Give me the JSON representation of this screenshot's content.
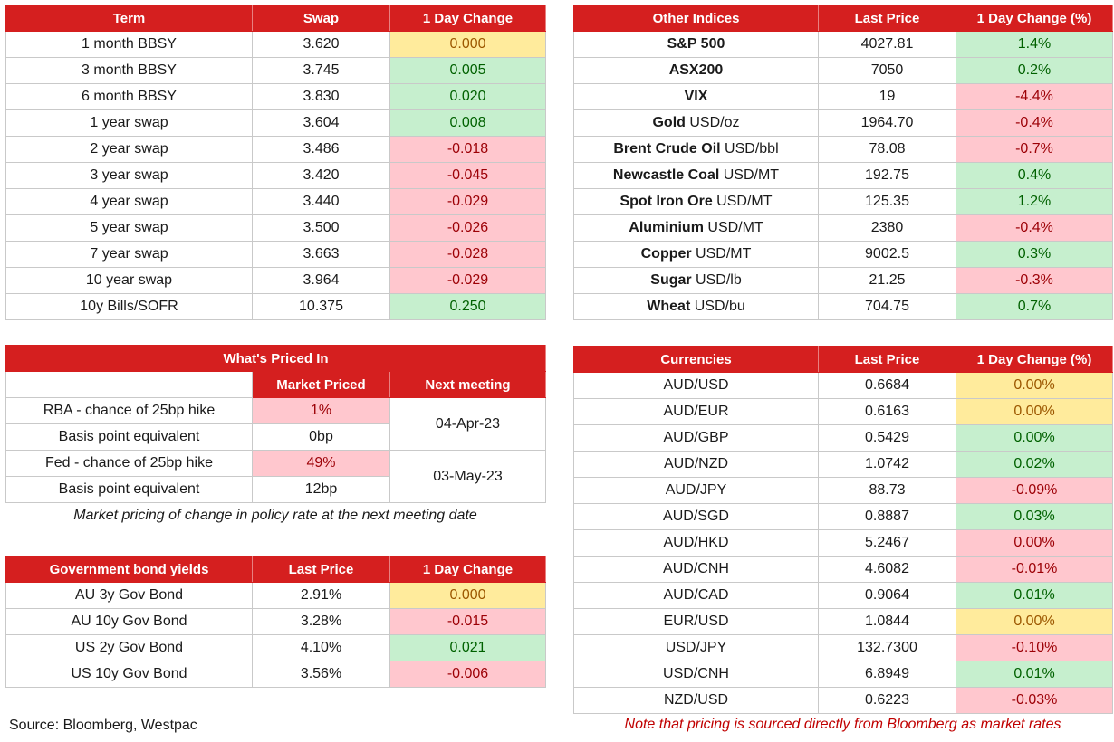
{
  "swaps": {
    "headers": [
      "Term",
      "Swap",
      "1 Day Change"
    ],
    "rows": [
      {
        "term": "1 month BBSY",
        "swap": "3.620",
        "change": "0.000",
        "status": "neu"
      },
      {
        "term": "3 month BBSY",
        "swap": "3.745",
        "change": "0.005",
        "status": "pos"
      },
      {
        "term": "6 month BBSY",
        "swap": "3.830",
        "change": "0.020",
        "status": "pos"
      },
      {
        "term": "1 year swap",
        "swap": "3.604",
        "change": "0.008",
        "status": "pos"
      },
      {
        "term": "2 year swap",
        "swap": "3.486",
        "change": "-0.018",
        "status": "neg"
      },
      {
        "term": "3 year swap",
        "swap": "3.420",
        "change": "-0.045",
        "status": "neg"
      },
      {
        "term": "4 year swap",
        "swap": "3.440",
        "change": "-0.029",
        "status": "neg"
      },
      {
        "term": "5 year swap",
        "swap": "3.500",
        "change": "-0.026",
        "status": "neg"
      },
      {
        "term": "7 year swap",
        "swap": "3.663",
        "change": "-0.028",
        "status": "neg"
      },
      {
        "term": "10 year swap",
        "swap": "3.964",
        "change": "-0.029",
        "status": "neg"
      },
      {
        "term": "10y Bills/SOFR",
        "swap": "10.375",
        "change": "0.250",
        "status": "pos"
      }
    ]
  },
  "indices": {
    "headers": [
      "Other Indices",
      "Last Price",
      "1 Day Change (%)"
    ],
    "rows": [
      {
        "name": "S&P 500",
        "unit": "",
        "price": "4027.81",
        "change": "1.4%",
        "status": "pos"
      },
      {
        "name": "ASX200",
        "unit": "",
        "price": "7050",
        "change": "0.2%",
        "status": "pos"
      },
      {
        "name": "VIX",
        "unit": "",
        "price": "19",
        "change": "-4.4%",
        "status": "neg"
      },
      {
        "name": "Gold",
        "unit": " USD/oz",
        "price": "1964.70",
        "change": "-0.4%",
        "status": "neg"
      },
      {
        "name": "Brent Crude Oil",
        "unit": " USD/bbl",
        "price": "78.08",
        "change": "-0.7%",
        "status": "neg"
      },
      {
        "name": "Newcastle Coal",
        "unit": " USD/MT",
        "price": "192.75",
        "change": "0.4%",
        "status": "pos"
      },
      {
        "name": "Spot Iron Ore",
        "unit": " USD/MT",
        "price": "125.35",
        "change": "1.2%",
        "status": "pos"
      },
      {
        "name": "Aluminium",
        "unit": " USD/MT",
        "price": "2380",
        "change": "-0.4%",
        "status": "neg"
      },
      {
        "name": "Copper",
        "unit": " USD/MT",
        "price": "9002.5",
        "change": "0.3%",
        "status": "pos"
      },
      {
        "name": "Sugar",
        "unit": " USD/lb",
        "price": "21.25",
        "change": "-0.3%",
        "status": "neg"
      },
      {
        "name": "Wheat",
        "unit": " USD/bu",
        "price": "704.75",
        "change": "0.7%",
        "status": "pos"
      }
    ]
  },
  "priced_in": {
    "title": "What's Priced In",
    "col_market": "Market Priced",
    "col_meeting": "Next meeting",
    "groups": [
      {
        "label": "RBA - chance of 25bp hike",
        "value": "1%",
        "bp_label": "Basis point equivalent",
        "bp_value": "0bp",
        "meeting": "04-Apr-23"
      },
      {
        "label": "Fed - chance of 25bp hike",
        "value": "49%",
        "bp_label": "Basis point equivalent",
        "bp_value": "12bp",
        "meeting": "03-May-23"
      }
    ],
    "note": "Market pricing of change in policy rate at the next meeting date"
  },
  "bonds": {
    "headers": [
      "Government bond yields",
      "Last Price",
      "1 Day Change"
    ],
    "rows": [
      {
        "name": "AU 3y Gov Bond",
        "price": "2.91%",
        "change": "0.000",
        "status": "neu"
      },
      {
        "name": "AU 10y Gov Bond",
        "price": "3.28%",
        "change": "-0.015",
        "status": "neg"
      },
      {
        "name": "US 2y Gov Bond",
        "price": "4.10%",
        "change": "0.021",
        "status": "pos"
      },
      {
        "name": "US 10y Gov Bond",
        "price": "3.56%",
        "change": "-0.006",
        "status": "neg"
      }
    ]
  },
  "currencies": {
    "headers": [
      "Currencies",
      "Last Price",
      "1 Day Change (%)"
    ],
    "rows": [
      {
        "pair": "AUD/USD",
        "price": "0.6684",
        "change": "0.00%",
        "status": "neu"
      },
      {
        "pair": "AUD/EUR",
        "price": "0.6163",
        "change": "0.00%",
        "status": "neu"
      },
      {
        "pair": "AUD/GBP",
        "price": "0.5429",
        "change": "0.00%",
        "status": "pos"
      },
      {
        "pair": "AUD/NZD",
        "price": "1.0742",
        "change": "0.02%",
        "status": "pos"
      },
      {
        "pair": "AUD/JPY",
        "price": "88.73",
        "change": "-0.09%",
        "status": "neg"
      },
      {
        "pair": "AUD/SGD",
        "price": "0.8887",
        "change": "0.03%",
        "status": "pos"
      },
      {
        "pair": "AUD/HKD",
        "price": "5.2467",
        "change": "0.00%",
        "status": "neg"
      },
      {
        "pair": "AUD/CNH",
        "price": "4.6082",
        "change": "-0.01%",
        "status": "neg"
      },
      {
        "pair": "AUD/CAD",
        "price": "0.9064",
        "change": "0.01%",
        "status": "pos"
      },
      {
        "pair": "EUR/USD",
        "price": "1.0844",
        "change": "0.00%",
        "status": "neu"
      },
      {
        "pair": "USD/JPY",
        "price": "132.7300",
        "change": "-0.10%",
        "status": "neg"
      },
      {
        "pair": "USD/CNH",
        "price": "6.8949",
        "change": "0.01%",
        "status": "pos"
      },
      {
        "pair": "NZD/USD",
        "price": "0.6223",
        "change": "-0.03%",
        "status": "neg"
      }
    ]
  },
  "footer": {
    "source": "Source: Bloomberg, Westpac",
    "disclaimer": "Note that pricing is sourced directly from Bloomberg as market rates",
    "disclaimer_color": "#c00000"
  },
  "colors": {
    "header_red": "#d51f1f",
    "positive_bg": "#c6efce",
    "negative_bg": "#ffc7ce",
    "neutral_bg": "#ffeb9c"
  }
}
